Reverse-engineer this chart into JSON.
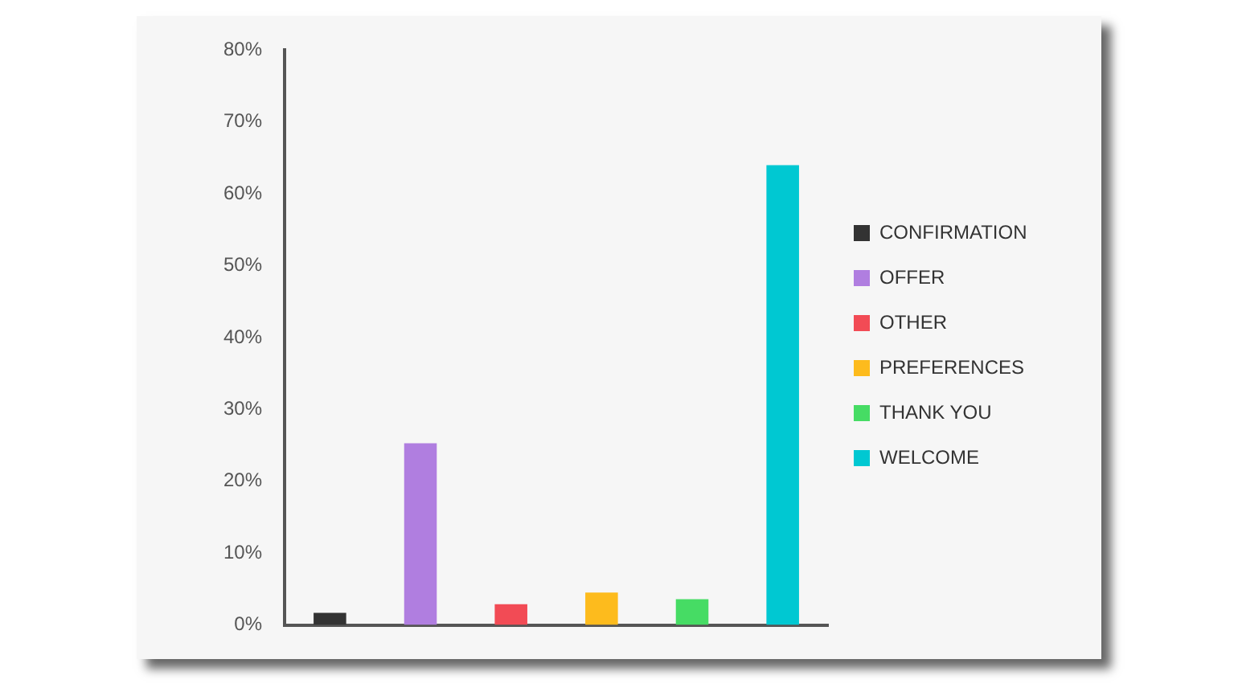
{
  "chart_data": {
    "type": "bar",
    "categories": [
      null
    ],
    "series": [
      {
        "name": "CONFIRMATION",
        "color": "#333333",
        "values": [
          1.7
        ]
      },
      {
        "name": "OFFER",
        "color": "#b07ee0",
        "values": [
          25.3
        ]
      },
      {
        "name": "OTHER",
        "color": "#f24b55",
        "values": [
          2.9
        ]
      },
      {
        "name": "PREFERENCES",
        "color": "#fdbb1d",
        "values": [
          4.5
        ]
      },
      {
        "name": "THANK YOU",
        "color": "#46dc64",
        "values": [
          3.6
        ]
      },
      {
        "name": "WELCOME",
        "color": "#00c8d2",
        "values": [
          64.0
        ]
      }
    ],
    "ylim": [
      0,
      80
    ],
    "yticks": [
      {
        "value": 0,
        "label": "0%"
      },
      {
        "value": 10,
        "label": "10%"
      },
      {
        "value": 20,
        "label": "20%"
      },
      {
        "value": 30,
        "label": "30%"
      },
      {
        "value": 40,
        "label": "40%"
      },
      {
        "value": 50,
        "label": "50%"
      },
      {
        "value": 60,
        "label": "60%"
      },
      {
        "value": 70,
        "label": "70%"
      },
      {
        "value": 80,
        "label": "80%"
      }
    ],
    "grid": false,
    "legend": "right"
  }
}
